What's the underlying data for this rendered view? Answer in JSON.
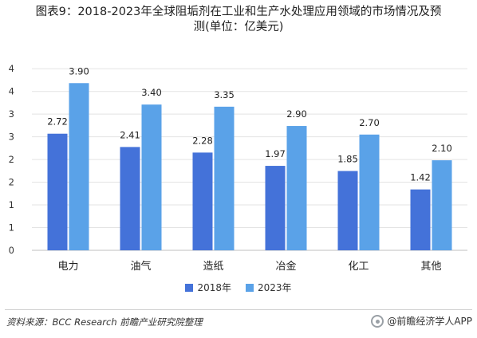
{
  "title_lines": [
    "图表9：2018-2023年全球阻垢剂在工业和生产水处理应用领域的市场情况及预",
    "测(单位：亿美元)"
  ],
  "source": "资料来源：BCC Research 前瞻产业研究院整理",
  "brand": "@前瞻经济学人APP",
  "colors": {
    "s2018": "#4472d9",
    "s2023": "#5aa2e8",
    "grid": "#e3e3e3",
    "axis": "#bfbfbf",
    "text": "#333333"
  },
  "chart_data": {
    "type": "bar",
    "title": "2018-2023年全球阻垢剂在工业和生产水处理应用领域的市场情况及预测(单位：亿美元)",
    "categories": [
      "电力",
      "油气",
      "造纸",
      "冶金",
      "化工",
      "其他"
    ],
    "series": [
      {
        "name": "2018年",
        "values": [
          2.72,
          2.41,
          2.28,
          1.97,
          1.85,
          1.42
        ],
        "color": "#4472d9"
      },
      {
        "name": "2023年",
        "values": [
          3.9,
          3.4,
          3.35,
          2.9,
          2.7,
          2.1
        ],
        "color": "#5aa2e8"
      }
    ],
    "ytick_labels": [
      "0",
      "1",
      "1",
      "2",
      "2",
      "3",
      "3",
      "4",
      "4"
    ],
    "ylim": [
      0,
      4.5
    ],
    "grid": true,
    "legend": "bottom"
  }
}
